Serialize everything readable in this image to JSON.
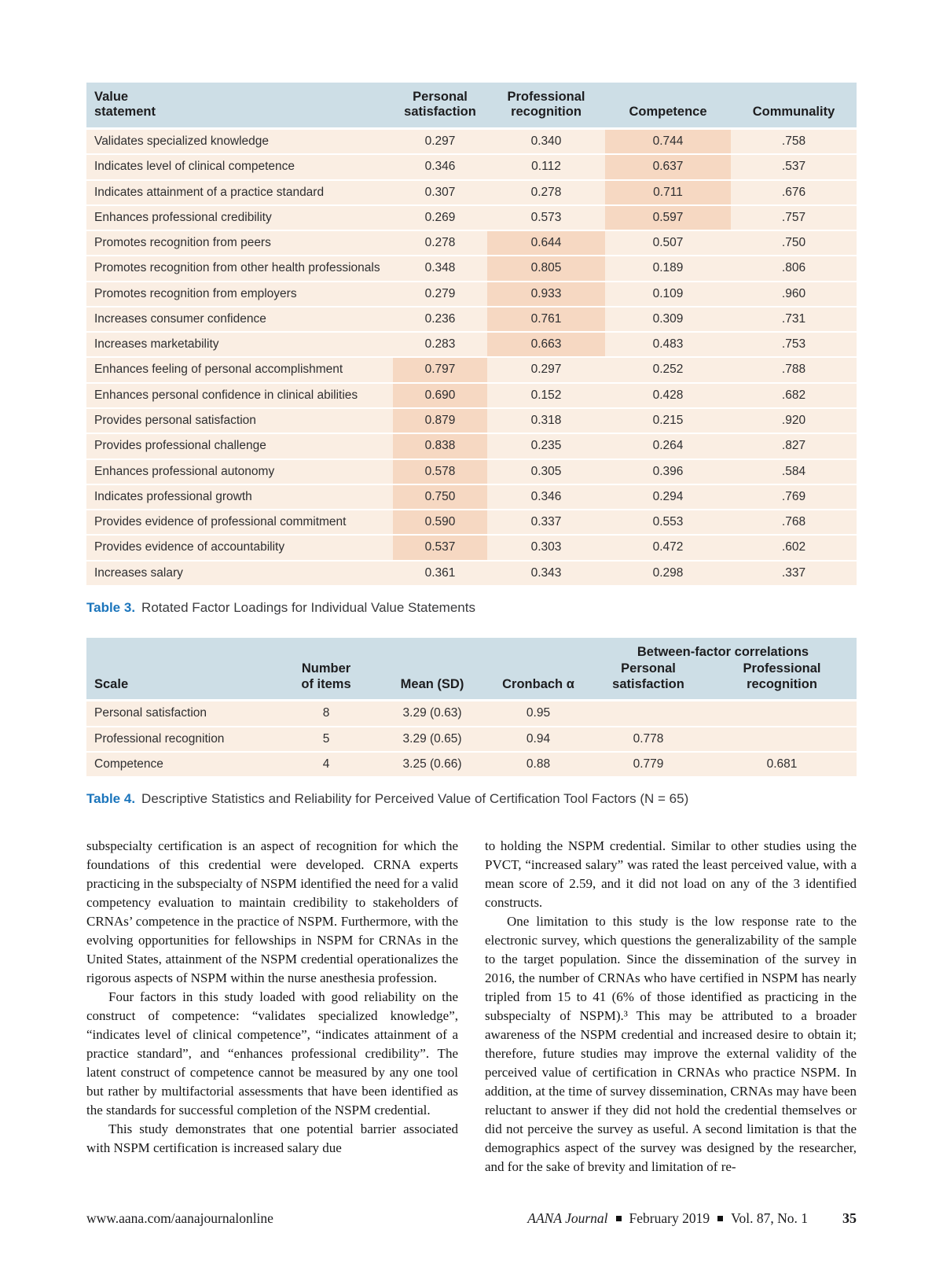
{
  "colors": {
    "table_header_bg": "#cddee6",
    "table_body_bg": "#faeee3",
    "highlight_bg": "#f6d8c2",
    "caption_accent": "#1b75bc"
  },
  "table3": {
    "caption": {
      "label": "Table 3.",
      "text": "Rotated Factor Loadings for Individual Value Statements"
    },
    "headers": {
      "statement": "Value\nstatement",
      "personal": "Personal\nsatisfaction",
      "professional": "Professional\nrecognition",
      "competence": "Competence",
      "communality": "Communality"
    },
    "rows": [
      {
        "statement": "Validates specialized knowledge",
        "values": [
          "0.297",
          "0.340",
          "0.744",
          ".758"
        ],
        "highlight": 2
      },
      {
        "statement": "Indicates level of clinical competence",
        "values": [
          "0.346",
          "0.112",
          "0.637",
          ".537"
        ],
        "highlight": 2
      },
      {
        "statement": "Indicates attainment of a practice standard",
        "values": [
          "0.307",
          "0.278",
          "0.711",
          ".676"
        ],
        "highlight": 2
      },
      {
        "statement": "Enhances professional credibility",
        "values": [
          "0.269",
          "0.573",
          "0.597",
          ".757"
        ],
        "highlight": 2
      },
      {
        "statement": "Promotes recognition from peers",
        "values": [
          "0.278",
          "0.644",
          "0.507",
          ".750"
        ],
        "highlight": 1
      },
      {
        "statement": "Promotes recognition from other health professionals",
        "values": [
          "0.348",
          "0.805",
          "0.189",
          ".806"
        ],
        "highlight": 1
      },
      {
        "statement": "Promotes recognition from employers",
        "values": [
          "0.279",
          "0.933",
          "0.109",
          ".960"
        ],
        "highlight": 1
      },
      {
        "statement": "Increases consumer confidence",
        "values": [
          "0.236",
          "0.761",
          "0.309",
          ".731"
        ],
        "highlight": 1
      },
      {
        "statement": "Increases marketability",
        "values": [
          "0.283",
          "0.663",
          "0.483",
          ".753"
        ],
        "highlight": 1
      },
      {
        "statement": "Enhances feeling of personal accomplishment",
        "values": [
          "0.797",
          "0.297",
          "0.252",
          ".788"
        ],
        "highlight": 0
      },
      {
        "statement": "Enhances personal confidence in clinical abilities",
        "values": [
          "0.690",
          "0.152",
          "0.428",
          ".682"
        ],
        "highlight": 0
      },
      {
        "statement": "Provides personal satisfaction",
        "values": [
          "0.879",
          "0.318",
          "0.215",
          ".920"
        ],
        "highlight": 0
      },
      {
        "statement": "Provides professional challenge",
        "values": [
          "0.838",
          "0.235",
          "0.264",
          ".827"
        ],
        "highlight": 0
      },
      {
        "statement": "Enhances professional autonomy",
        "values": [
          "0.578",
          "0.305",
          "0.396",
          ".584"
        ],
        "highlight": 0
      },
      {
        "statement": "Indicates professional growth",
        "values": [
          "0.750",
          "0.346",
          "0.294",
          ".769"
        ],
        "highlight": 0
      },
      {
        "statement": "Provides evidence of professional commitment",
        "values": [
          "0.590",
          "0.337",
          "0.553",
          ".768"
        ],
        "highlight": 0
      },
      {
        "statement": "Provides evidence of accountability",
        "values": [
          "0.537",
          "0.303",
          "0.472",
          ".602"
        ],
        "highlight": 0
      },
      {
        "statement": "Increases salary",
        "values": [
          "0.361",
          "0.343",
          "0.298",
          ".337"
        ],
        "highlight": null
      }
    ]
  },
  "table4": {
    "caption": {
      "label": "Table 4.",
      "text": "Descriptive Statistics and Reliability for Perceived Value of Certification Tool Factors (N = 65)"
    },
    "headers": {
      "group": "Between-factor correlations",
      "scale": "Scale",
      "items": "Number\nof items",
      "mean": "Mean (SD)",
      "cronbach": "Cronbach α",
      "personal": "Personal\nsatisfaction",
      "professional": "Professional\nrecognition"
    },
    "rows": [
      {
        "scale": "Personal satisfaction",
        "values": [
          "8",
          "3.29 (0.63)",
          "0.95",
          "",
          ""
        ]
      },
      {
        "scale": "Professional recognition",
        "values": [
          "5",
          "3.29 (0.65)",
          "0.94",
          "0.778",
          ""
        ]
      },
      {
        "scale": "Competence",
        "values": [
          "4",
          "3.25 (0.66)",
          "0.88",
          "0.779",
          "0.681"
        ]
      }
    ]
  },
  "body": {
    "left": [
      {
        "indent": false,
        "text": "subspecialty certification is an aspect of recognition for which the foundations of this credential were developed. CRNA experts practicing in the subspecialty of NSPM identified the need for a valid competency evaluation to maintain credibility to stakeholders of CRNAs’ competence in the practice of NSPM. Furthermore, with the evolving opportunities for fellowships in NSPM for CRNAs in the United States, attainment of the NSPM credential operationalizes the rigorous aspects of NSPM within the nurse anesthesia profession."
      },
      {
        "indent": true,
        "text": "Four factors in this study loaded with good reliability on the construct of competence: “validates specialized knowledge”, “indicates level of clinical competence”, “indicates attainment of a practice standard”, and “enhances professional credibility”. The latent construct of competence cannot be measured by any one tool but rather by multifactorial assessments that have been identified as the standards for successful completion of the NSPM credential."
      },
      {
        "indent": true,
        "text": "This study demonstrates that one potential barrier associated with NSPM certification is increased salary due"
      }
    ],
    "right": [
      {
        "indent": false,
        "text": "to holding the NSPM credential. Similar to other studies using the PVCT, “increased salary” was rated the least perceived value, with a mean score of 2.59, and it did not load on any of the 3 identified constructs."
      },
      {
        "indent": true,
        "text": "One limitation to this study is the low response rate to the electronic survey, which questions the generalizability of the sample to the target population. Since the dissemination of the survey in 2016, the number of CRNAs who have certified in NSPM has nearly tripled from 15 to 41 (6% of those identified as practicing in the subspecialty of NSPM).³ This may be attributed to a broader awareness of the NSPM credential and increased desire to obtain it; therefore, future studies may improve the external validity of the perceived value of certification in CRNAs who practice NSPM. In addition, at the time of survey dissemination, CRNAs may have been reluctant to answer if they did not hold the credential themselves or did not perceive the survey as useful. A second limitation is that the demographics aspect of the survey was designed by the researcher, and for the sake of brevity and limitation of re-"
      }
    ]
  },
  "footer": {
    "url": "www.aana.com/aanajournalonline",
    "journal": "AANA Journal",
    "date": "February 2019",
    "volume": "Vol. 87, No. 1",
    "page": "35"
  }
}
